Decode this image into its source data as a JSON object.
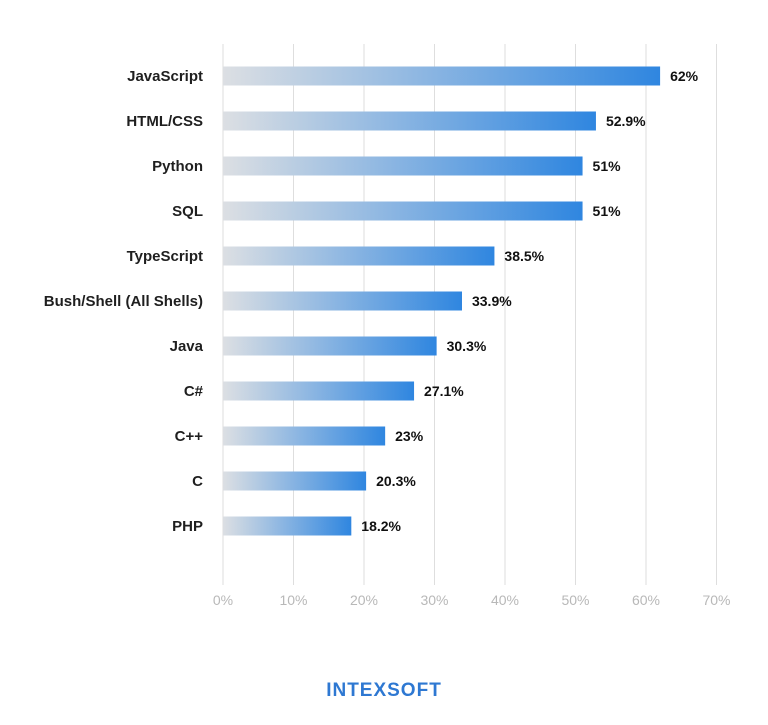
{
  "chart_data": {
    "type": "bar",
    "orientation": "horizontal",
    "categories": [
      "JavaScript",
      "HTML/CSS",
      "Python",
      "SQL",
      "TypeScript",
      "Bush/Shell (All Shells)",
      "Java",
      "C#",
      "C++",
      "C",
      "PHP"
    ],
    "values": [
      62,
      52.9,
      51,
      51,
      38.5,
      33.9,
      30.3,
      27.1,
      23,
      20.3,
      18.2
    ],
    "value_labels": [
      "62%",
      "52.9%",
      "51%",
      "51%",
      "38.5%",
      "33.9%",
      "30.3%",
      "27.1%",
      "23%",
      "20.3%",
      "18.2%"
    ],
    "x_ticks": [
      "0%",
      "10%",
      "20%",
      "30%",
      "40%",
      "50%",
      "60%",
      "70%"
    ],
    "xlim": [
      0,
      70
    ],
    "grid": true,
    "colors": {
      "bar_start": "#dcdfe3",
      "bar_end": "#2f86e0",
      "grid": "#dedede",
      "tick_text": "#b8b8b8"
    }
  },
  "logo": {
    "text": "INTEXSOFT",
    "color": "#2e78d2"
  }
}
